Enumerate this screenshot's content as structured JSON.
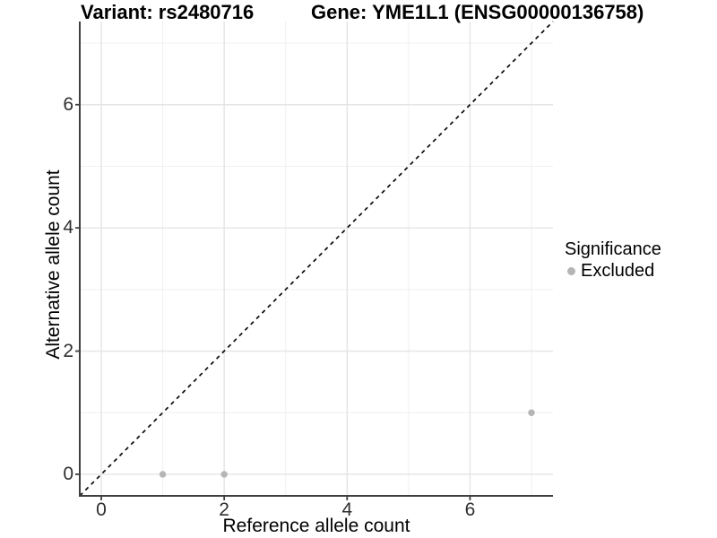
{
  "chart_data": {
    "type": "scatter",
    "title_left": "Variant: rs2480716",
    "title_right": "Gene: YME1L1 (ENSG00000136758)",
    "xlabel": "Reference allele count",
    "ylabel": "Alternative allele count",
    "xlim": [
      -0.35,
      7.35
    ],
    "ylim": [
      -0.35,
      7.35
    ],
    "x_major_ticks": [
      0,
      2,
      4,
      6
    ],
    "y_major_ticks": [
      0,
      2,
      4,
      6
    ],
    "x_minor_ticks": [
      1,
      3,
      5,
      7
    ],
    "y_minor_ticks": [
      1,
      3,
      5,
      7
    ],
    "grid": true,
    "legend_position": "right",
    "identity_line": {
      "slope": 1,
      "intercept": 0,
      "style": "dashed",
      "color": "#000000"
    },
    "series": [
      {
        "name": "Excluded",
        "color": "#b5b5b5",
        "points": [
          {
            "x": 1,
            "y": 0
          },
          {
            "x": 2,
            "y": 0
          },
          {
            "x": 7,
            "y": 1
          }
        ]
      }
    ],
    "legend": {
      "title": "Significance",
      "items": [
        {
          "label": "Excluded",
          "color": "#b5b5b5"
        }
      ]
    },
    "colors": {
      "major_grid": "#e4e4e4",
      "minor_grid": "#f0f0f0",
      "axis_line": "#3f3f3f",
      "point": "#b5b5b5",
      "dashed_line": "#0a0a0a"
    }
  }
}
